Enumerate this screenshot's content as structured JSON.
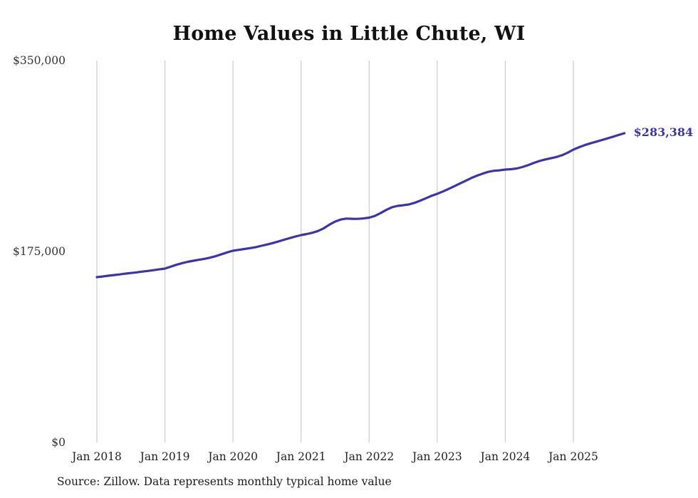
{
  "page": {
    "title": "Home Values in Little Chute, WI",
    "source": "Source: Zillow. Data represents monthly typical home value"
  },
  "chart_data": {
    "type": "line",
    "title": "Home Values in Little Chute, WI",
    "series_name": "Monthly typical home value",
    "x": [
      "2018-01",
      "2018-02",
      "2018-03",
      "2018-04",
      "2018-05",
      "2018-06",
      "2018-07",
      "2018-08",
      "2018-09",
      "2018-10",
      "2018-11",
      "2018-12",
      "2019-01",
      "2019-02",
      "2019-03",
      "2019-04",
      "2019-05",
      "2019-06",
      "2019-07",
      "2019-08",
      "2019-09",
      "2019-10",
      "2019-11",
      "2019-12",
      "2020-01",
      "2020-02",
      "2020-03",
      "2020-04",
      "2020-05",
      "2020-06",
      "2020-07",
      "2020-08",
      "2020-09",
      "2020-10",
      "2020-11",
      "2020-12",
      "2021-01",
      "2021-02",
      "2021-03",
      "2021-04",
      "2021-05",
      "2021-06",
      "2021-07",
      "2021-08",
      "2021-09",
      "2021-10",
      "2021-11",
      "2021-12",
      "2022-01",
      "2022-02",
      "2022-03",
      "2022-04",
      "2022-05",
      "2022-06",
      "2022-07",
      "2022-08",
      "2022-09",
      "2022-10",
      "2022-11",
      "2022-12",
      "2023-01",
      "2023-02",
      "2023-03",
      "2023-04",
      "2023-05",
      "2023-06",
      "2023-07",
      "2023-08",
      "2023-09",
      "2023-10",
      "2023-11",
      "2023-12",
      "2024-01",
      "2024-02",
      "2024-03",
      "2024-04",
      "2024-05",
      "2024-06",
      "2024-07",
      "2024-08",
      "2024-09",
      "2024-10",
      "2024-11",
      "2024-12",
      "2025-01",
      "2025-02",
      "2025-03",
      "2025-04",
      "2025-05",
      "2025-06",
      "2025-07",
      "2025-08",
      "2025-09",
      "2025-10"
    ],
    "values": [
      151500,
      152100,
      152800,
      153400,
      154000,
      154700,
      155300,
      155900,
      156600,
      157200,
      157900,
      158600,
      159300,
      161000,
      162800,
      164300,
      165500,
      166500,
      167400,
      168300,
      169400,
      170800,
      172500,
      174200,
      175700,
      176500,
      177300,
      178100,
      179000,
      180200,
      181400,
      182700,
      184200,
      185800,
      187300,
      188700,
      190000,
      191000,
      192200,
      193800,
      196300,
      199600,
      202400,
      204300,
      205200,
      205000,
      204900,
      205300,
      206000,
      207600,
      210100,
      213100,
      215500,
      216800,
      217400,
      218100,
      219600,
      221600,
      223800,
      226000,
      227900,
      230000,
      232300,
      234800,
      237300,
      239800,
      242300,
      244500,
      246400,
      248000,
      249000,
      249400,
      250100,
      250400,
      251100,
      252400,
      254100,
      256100,
      257900,
      259300,
      260400,
      261600,
      263200,
      265600,
      268400,
      270600,
      272500,
      274100,
      275600,
      277100,
      278600,
      280200,
      281800,
      283384
    ],
    "ylim": [
      0,
      350000
    ],
    "y_ticks": [
      0,
      175000,
      350000
    ],
    "y_tick_labels": [
      "$0",
      "$175,000",
      "$350,000"
    ],
    "x_tick_labels": [
      "Jan 2018",
      "Jan 2019",
      "Jan 2020",
      "Jan 2021",
      "Jan 2022",
      "Jan 2023",
      "Jan 2024",
      "Jan 2025"
    ],
    "end_label": "$283,384",
    "line_color": "#3b35a8",
    "grid_color": "#cccccc",
    "axis_label_color": "#333333",
    "grid": true,
    "legend_position": "none"
  }
}
